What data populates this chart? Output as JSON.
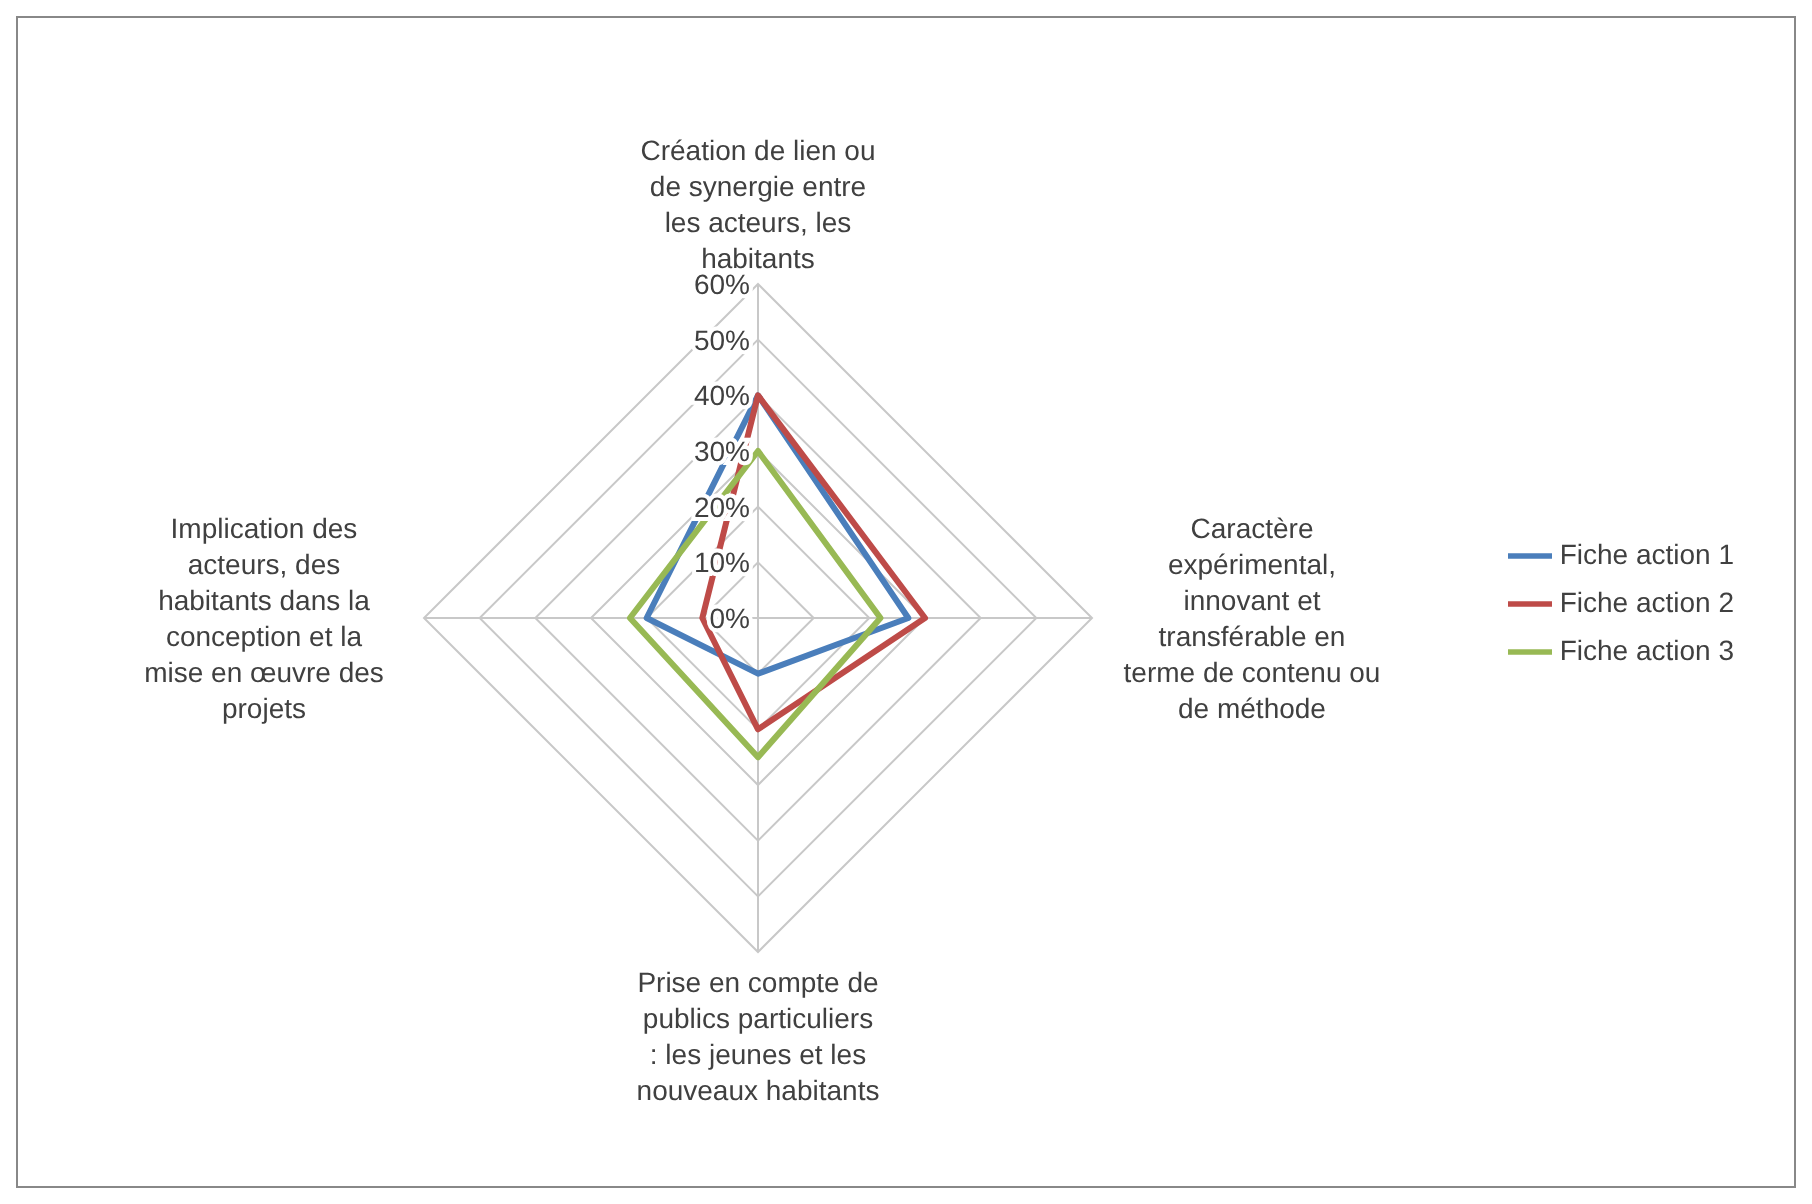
{
  "chart_data": {
    "type": "radar",
    "categories": [
      "Création de lien ou de synergie entre les acteurs, les habitants",
      "Caractère expérimental, innovant et transférable en terme de contenu ou de méthode",
      "Prise en compte de publics particuliers : les jeunes et les nouveaux habitants",
      "Implication des acteurs, des habitants dans la conception et la mise en œuvre des projets"
    ],
    "series": [
      {
        "name": "Fiche action 1",
        "color": "#4a7ebb",
        "values": [
          40,
          27,
          10,
          20
        ]
      },
      {
        "name": "Fiche action 2",
        "color": "#be4b48",
        "values": [
          40,
          30,
          20,
          10
        ]
      },
      {
        "name": "Fiche action 3",
        "color": "#98b954",
        "values": [
          30,
          22,
          25,
          23
        ]
      }
    ],
    "ylim": [
      0,
      60
    ],
    "yticks": [
      {
        "value": 0,
        "label": "0%"
      },
      {
        "value": 10,
        "label": "10%"
      },
      {
        "value": 20,
        "label": "20%"
      },
      {
        "value": 30,
        "label": "30%"
      },
      {
        "value": 40,
        "label": "40%"
      },
      {
        "value": 50,
        "label": "50%"
      },
      {
        "value": 60,
        "label": "60%"
      }
    ],
    "grid": true,
    "legend": "right",
    "marker": "none",
    "line_style": "solid"
  }
}
